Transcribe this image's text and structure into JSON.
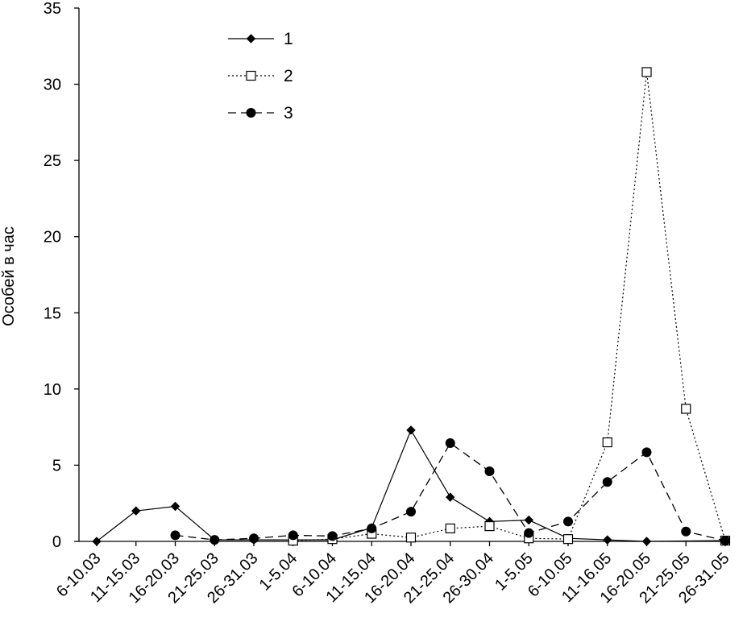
{
  "chart_data": {
    "type": "line",
    "title": "",
    "xlabel": "",
    "ylabel": "Особей в час",
    "ylim": [
      0,
      35
    ],
    "yticks": [
      0,
      5,
      10,
      15,
      20,
      25,
      30,
      35
    ],
    "grid": false,
    "legend_position": "top-left",
    "categories": [
      "6-10.03",
      "11-15.03",
      "16-20.03",
      "21-25.03",
      "26-31.03",
      "1-5.04",
      "6-10.04",
      "11-15.04",
      "16-20.04",
      "21-25.04",
      "26-30.04",
      "1-5.05",
      "6-10.05",
      "11-16.05",
      "16-20.05",
      "21-25.05",
      "26-31.05"
    ],
    "series": [
      {
        "name": "1",
        "marker": "diamond",
        "line": "solid",
        "values": [
          0,
          2.0,
          2.3,
          0.1,
          0.1,
          0.1,
          0.1,
          0.9,
          7.3,
          2.9,
          1.3,
          1.4,
          0.2,
          0.1,
          0.0,
          null,
          0.05
        ]
      },
      {
        "name": "2",
        "marker": "square-open",
        "line": "dotted",
        "values": [
          null,
          null,
          null,
          null,
          null,
          0.05,
          0.15,
          0.5,
          0.25,
          0.85,
          1.0,
          0.2,
          0.15,
          6.5,
          30.8,
          8.7,
          0.05
        ]
      },
      {
        "name": "3",
        "marker": "circle",
        "line": "dashed",
        "values": [
          null,
          null,
          0.4,
          0.1,
          0.2,
          0.4,
          0.35,
          0.85,
          1.95,
          6.45,
          4.6,
          0.55,
          1.3,
          3.9,
          5.85,
          0.65,
          0.05
        ]
      }
    ]
  }
}
